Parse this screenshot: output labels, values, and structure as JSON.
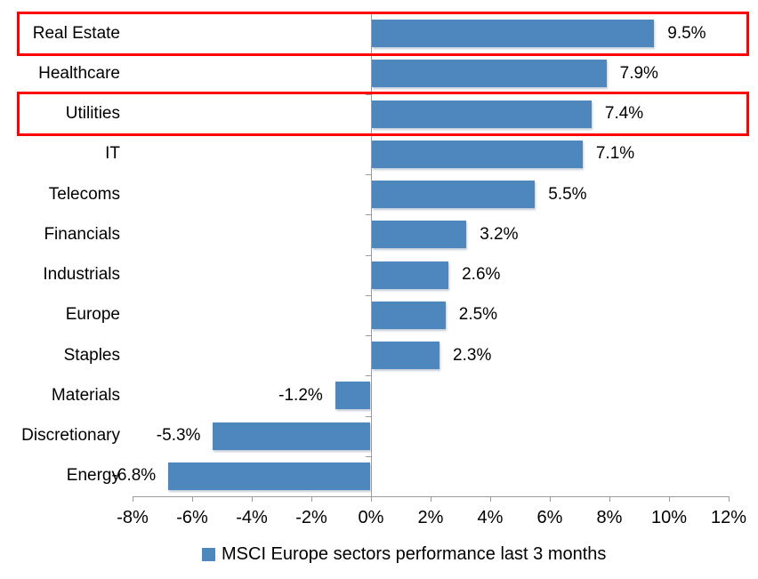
{
  "chart_data": {
    "type": "bar",
    "orientation": "horizontal",
    "title": "",
    "xlabel": "",
    "ylabel": "",
    "categories": [
      "Real Estate",
      "Healthcare",
      "Utilities",
      "IT",
      "Telecoms",
      "Financials",
      "Industrials",
      "Europe",
      "Staples",
      "Materials",
      "Discretionary",
      "Energy"
    ],
    "values": [
      9.5,
      7.9,
      7.4,
      7.1,
      5.5,
      3.2,
      2.6,
      2.5,
      2.3,
      -1.2,
      -5.3,
      -6.8
    ],
    "data_labels": [
      "9.5%",
      "7.9%",
      "7.4%",
      "7.1%",
      "5.5%",
      "3.2%",
      "2.6%",
      "2.5%",
      "2.3%",
      "-1.2%",
      "-5.3%",
      "-6.8%"
    ],
    "xlim": [
      -8,
      12
    ],
    "x_tick_values": [
      -8,
      -6,
      -4,
      -2,
      0,
      2,
      4,
      6,
      8,
      10,
      12
    ],
    "x_tick_labels": [
      "-8%",
      "-6%",
      "-4%",
      "-2%",
      "0%",
      "2%",
      "4%",
      "6%",
      "8%",
      "10%",
      "12%"
    ],
    "grid": false,
    "legend_position": "bottom",
    "legend": [
      {
        "label": "MSCI Europe sectors performance last 3 months",
        "color": "#4e86be"
      }
    ],
    "colors": {
      "bar": "#4e86be",
      "axis": "#9c9c9c",
      "text": "#000000",
      "highlight": "#fe0000"
    },
    "annotations": {
      "highlighted_categories": [
        "Real Estate",
        "Utilities"
      ]
    }
  }
}
